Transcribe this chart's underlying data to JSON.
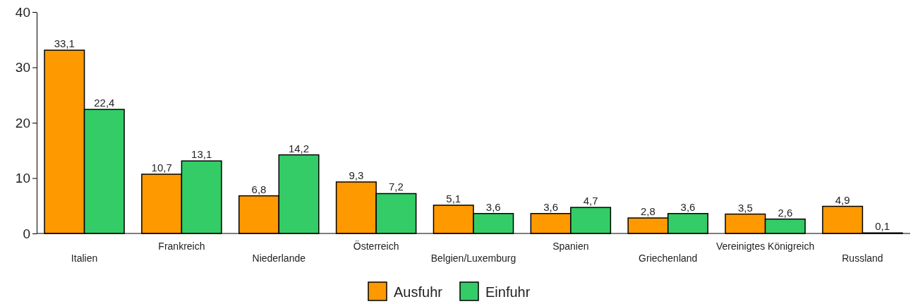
{
  "chart_data": {
    "type": "bar",
    "categories": [
      "Italien",
      "Frankreich",
      "Niederlande",
      "Österreich",
      "Belgien/Luxemburg",
      "Spanien",
      "Griechenland",
      "Vereinigtes Königreich",
      "Russland"
    ],
    "series": [
      {
        "name": "Ausfuhr",
        "color": "#ff9900",
        "values": [
          33.1,
          10.7,
          6.8,
          9.3,
          5.1,
          3.6,
          2.8,
          3.5,
          4.9
        ],
        "value_labels": [
          "33,1",
          "10,7",
          "6,8",
          "9,3",
          "5,1",
          "3,6",
          "2,8",
          "3,5",
          "4,9"
        ]
      },
      {
        "name": "Einfuhr",
        "color": "#33cc66",
        "values": [
          22.4,
          13.1,
          14.2,
          7.2,
          3.6,
          4.7,
          3.6,
          2.6,
          0.1
        ],
        "value_labels": [
          "22,4",
          "13,1",
          "14,2",
          "7,2",
          "3,6",
          "4,7",
          "3,6",
          "2,6",
          "0,1"
        ]
      }
    ],
    "ylim": [
      0,
      40
    ],
    "yticks": [
      0,
      10,
      20,
      30,
      40
    ],
    "grid": false,
    "legend": "bottom"
  }
}
